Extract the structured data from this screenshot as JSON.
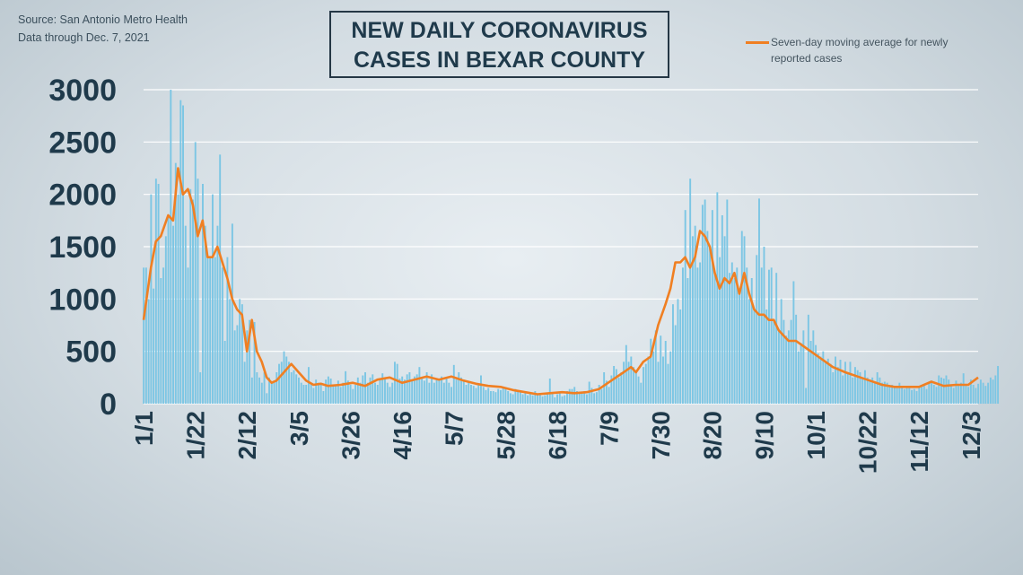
{
  "header": {
    "source": "Source: San Antonio Metro Health",
    "data_through": "Data through Dec. 7, 2021",
    "title_line1": "NEW DAILY CORONAVIRUS",
    "title_line2": "CASES IN BEXAR COUNTY",
    "legend_label": "Seven-day moving average for newly reported cases"
  },
  "colors": {
    "bars": "#7cc6e4",
    "line": "#f07f22",
    "grid": "#ffffff",
    "text": "#1f3a4b"
  },
  "chart_data": {
    "type": "bar",
    "title": "NEW DAILY CORONAVIRUS CASES IN BEXAR COUNTY",
    "xlabel": "",
    "ylabel": "",
    "ylim": [
      0,
      3000
    ],
    "yticks": [
      0,
      500,
      1000,
      1500,
      2000,
      2500,
      3000
    ],
    "grid": true,
    "legend_position": "top-right",
    "x_tick_labels": [
      "1/1",
      "1/22",
      "2/12",
      "3/5",
      "3/26",
      "4/16",
      "5/7",
      "5/28",
      "6/18",
      "7/9",
      "7/30",
      "8/20",
      "9/10",
      "10/1",
      "10/22",
      "11/12",
      "12/3"
    ],
    "x_tick_day_index": [
      0,
      21,
      42,
      63,
      84,
      105,
      126,
      147,
      168,
      189,
      210,
      231,
      252,
      273,
      294,
      315,
      336
    ],
    "series": [
      {
        "name": "Seven-day moving average for newly reported cases",
        "type": "line",
        "x_day_index": [
          0,
          3,
          5,
          7,
          10,
          12,
          14,
          16,
          18,
          20,
          22,
          24,
          26,
          28,
          30,
          32,
          34,
          36,
          38,
          40,
          42,
          44,
          46,
          48,
          50,
          52,
          54,
          57,
          60,
          63,
          66,
          69,
          72,
          75,
          80,
          85,
          90,
          95,
          100,
          105,
          110,
          115,
          120,
          125,
          130,
          135,
          140,
          145,
          150,
          155,
          160,
          165,
          170,
          175,
          180,
          185,
          190,
          195,
          198,
          200,
          203,
          206,
          209,
          212,
          214,
          216,
          218,
          220,
          222,
          224,
          226,
          228,
          230,
          232,
          234,
          236,
          238,
          240,
          242,
          244,
          246,
          248,
          250,
          252,
          254,
          256,
          258,
          260,
          262,
          265,
          268,
          271,
          274,
          277,
          280,
          285,
          290,
          295,
          300,
          305,
          310,
          315,
          320,
          325,
          330,
          335,
          339
        ],
        "values": [
          800,
          1300,
          1550,
          1600,
          1800,
          1750,
          2250,
          2000,
          2050,
          1900,
          1600,
          1750,
          1400,
          1400,
          1500,
          1350,
          1200,
          1000,
          900,
          850,
          500,
          800,
          500,
          400,
          250,
          200,
          220,
          300,
          380,
          300,
          220,
          180,
          190,
          170,
          180,
          200,
          170,
          230,
          250,
          200,
          230,
          260,
          230,
          260,
          220,
          190,
          170,
          160,
          130,
          110,
          90,
          100,
          110,
          100,
          110,
          140,
          220,
          300,
          350,
          300,
          400,
          450,
          750,
          950,
          1100,
          1350,
          1350,
          1400,
          1300,
          1400,
          1650,
          1600,
          1500,
          1250,
          1100,
          1200,
          1150,
          1250,
          1050,
          1250,
          1050,
          900,
          850,
          850,
          800,
          800,
          700,
          650,
          600,
          600,
          550,
          500,
          450,
          400,
          350,
          300,
          260,
          220,
          180,
          160,
          160,
          160,
          210,
          170,
          180,
          180,
          250
        ]
      }
    ],
    "daily_bars_approx": {
      "x_day_start": 0,
      "x_day_end": 339,
      "note_values_by_day": [
        1300,
        1300,
        1000,
        2000,
        1100,
        2150,
        2100,
        1200,
        1300,
        1600,
        1800,
        3000,
        1700,
        2300,
        2000,
        2900,
        2850,
        1700,
        1300,
        2050,
        1950,
        2500,
        2150,
        300,
        2100,
        1700,
        1400,
        1400,
        2000,
        1400,
        1700,
        2380,
        1300,
        600,
        1400,
        1000,
        1720,
        700,
        750,
        1000,
        950,
        400,
        700,
        800,
        250,
        780,
        300,
        250,
        200,
        300,
        100,
        250,
        200,
        200,
        300,
        380,
        400,
        500,
        450,
        400,
        300,
        320,
        280,
        250,
        200,
        180,
        180,
        350,
        200,
        150,
        230,
        200,
        180,
        120,
        230,
        260,
        240,
        180,
        180,
        220,
        160,
        200,
        310,
        220,
        180,
        140,
        180,
        250,
        200,
        270,
        300,
        200,
        250,
        280,
        200,
        180,
        230,
        290,
        240,
        200,
        160,
        200,
        400,
        380,
        240,
        260,
        230,
        280,
        300,
        220,
        260,
        280,
        350,
        250,
        220,
        300,
        200,
        280,
        200,
        230,
        230,
        260,
        200,
        250,
        200,
        160,
        370,
        230,
        300,
        250,
        230,
        180,
        200,
        180,
        170,
        150,
        180,
        270,
        160,
        130,
        150,
        120,
        120,
        110,
        140,
        130,
        160,
        140,
        120,
        100,
        90,
        140,
        120,
        110,
        90,
        100,
        80,
        110,
        80,
        120,
        90,
        100,
        70,
        80,
        100,
        240,
        100,
        60,
        90,
        100,
        70,
        80,
        120,
        140,
        140,
        160,
        120,
        100,
        110,
        120,
        90,
        210,
        150,
        100,
        110,
        180,
        140,
        300,
        220,
        160,
        270,
        360,
        330,
        250,
        300,
        400,
        560,
        400,
        450,
        350,
        320,
        260,
        200,
        350,
        380,
        450,
        620,
        500,
        700,
        400,
        650,
        450,
        600,
        380,
        500,
        950,
        750,
        1000,
        900,
        1300,
        1850,
        1200,
        2150,
        1600,
        1700,
        1300,
        1350,
        1900,
        1950,
        1650,
        1500,
        1850,
        1250,
        2020,
        1400,
        1800,
        1600,
        1950,
        1250,
        1350,
        1200,
        1300,
        1100,
        1650,
        1600,
        1300,
        1000,
        1200,
        900,
        1420,
        1960,
        1300,
        1500,
        900,
        1280,
        1300,
        800,
        1250,
        700,
        1000,
        800,
        650,
        700,
        800,
        1170,
        850,
        500,
        580,
        700,
        150,
        850,
        600,
        700,
        560,
        480,
        450,
        500,
        400,
        430,
        380,
        300,
        450,
        350,
        420,
        270,
        400,
        300,
        400,
        250,
        350,
        320,
        300,
        250,
        320,
        250,
        230,
        250,
        200,
        300,
        250,
        200,
        210,
        200,
        180,
        180,
        160,
        170,
        200,
        150,
        140,
        160,
        150,
        130,
        140,
        120,
        150,
        160,
        180,
        140,
        200,
        220,
        180,
        160,
        270,
        250,
        240,
        270,
        230,
        180,
        150,
        220,
        170,
        200,
        290,
        170,
        160,
        230,
        180,
        150,
        190,
        230,
        200,
        170,
        200,
        250,
        230,
        270,
        360
      ]
    }
  }
}
